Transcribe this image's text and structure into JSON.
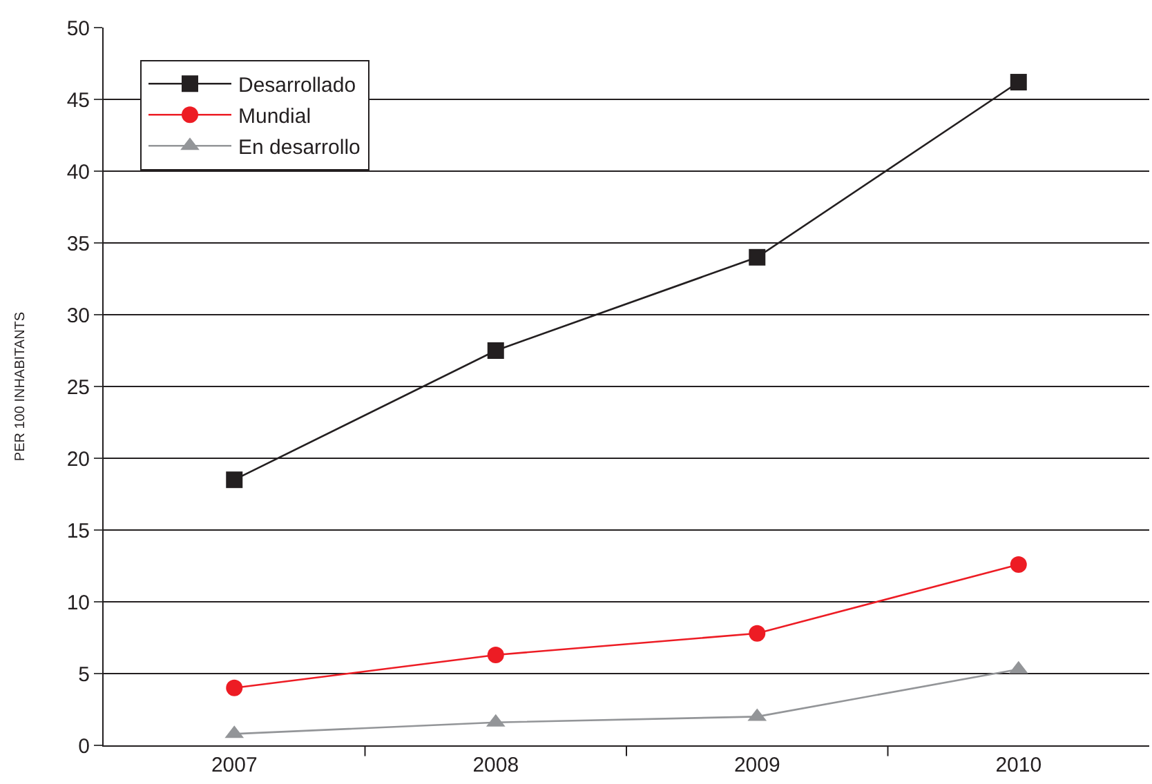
{
  "chart_data": {
    "type": "line",
    "ylabel": "PER 100 INHABITANTS",
    "categories": [
      "2007",
      "2008",
      "2009",
      "2010"
    ],
    "series": [
      {
        "name": "Desarrollado",
        "color": "#231f20",
        "marker": "square",
        "values": [
          18.5,
          27.5,
          34.0,
          46.2
        ]
      },
      {
        "name": "Mundial",
        "color": "#ed1c24",
        "marker": "circle",
        "values": [
          4.0,
          6.3,
          7.8,
          12.6
        ]
      },
      {
        "name": "En desarrollo",
        "color": "#939598",
        "marker": "triangle",
        "values": [
          0.8,
          1.6,
          2.0,
          5.3
        ]
      }
    ],
    "ylim": [
      0,
      50
    ],
    "yticks": [
      0,
      5,
      10,
      15,
      20,
      25,
      30,
      35,
      40,
      45,
      50
    ],
    "grid": "y",
    "legend": "top left",
    "line_style": "solid"
  }
}
